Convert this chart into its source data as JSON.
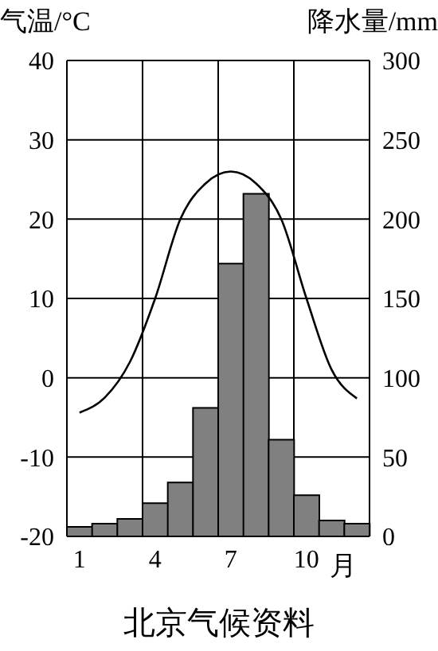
{
  "chart_data": {
    "type": "bar",
    "title": "北京气候资料",
    "xlabel": "月",
    "ylabel": "气温/°C",
    "y2label": "降水量/mm",
    "categories": [
      "1",
      null,
      null,
      "4",
      null,
      null,
      "7",
      null,
      null,
      "10",
      null,
      null
    ],
    "series": [
      {
        "axis": "y2",
        "color": "#808080",
        "values": [
          6,
          8,
          11,
          21,
          34,
          81,
          172,
          216,
          61,
          26,
          10,
          8
        ]
      },
      {
        "type": "line",
        "axis": "y",
        "color": "#000000",
        "values": [
          -4.4,
          -2.5,
          2,
          10,
          20,
          24.5,
          26,
          24.5,
          20,
          10,
          1,
          -2.6
        ]
      }
    ],
    "ylim": [
      -20,
      40
    ],
    "yticks": [
      -20,
      -10,
      0,
      10,
      20,
      30,
      40
    ],
    "y2lim": [
      0,
      300
    ],
    "y2ticks": [
      0,
      50,
      100,
      150,
      200,
      250,
      300
    ],
    "grid": true,
    "legend": false,
    "marker": "none",
    "line_style": "solid"
  }
}
